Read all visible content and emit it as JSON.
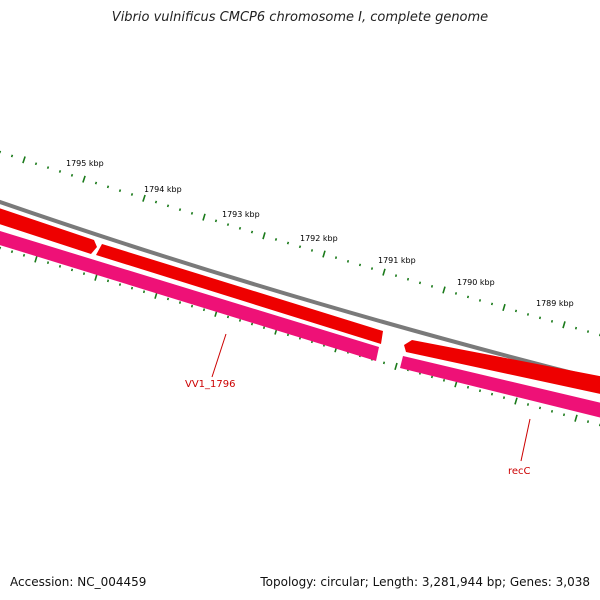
{
  "header": {
    "title": "Vibrio vulnificus CMCP6 chromosome I, complete genome"
  },
  "footer": {
    "accession": "Accession: NC_004459",
    "summary": "Topology: circular; Length: 3,281,944 bp; Genes: 3,038"
  },
  "colors": {
    "backbone": "#7a7a7a",
    "forward_gene": "#ee0000",
    "reverse_gene": "#ee1177",
    "tick": "#1a7a1a",
    "label": "#cc0000"
  },
  "scale": {
    "unit": "kbp",
    "labels": [
      "1795 kbp",
      "1794 kbp",
      "1793 kbp",
      "1792 kbp",
      "1791 kbp",
      "1790 kbp",
      "1789 kbp"
    ]
  },
  "genes": [
    {
      "name": "VV1_1796",
      "strand": "reverse"
    },
    {
      "name": "recC",
      "strand": "reverse"
    }
  ]
}
